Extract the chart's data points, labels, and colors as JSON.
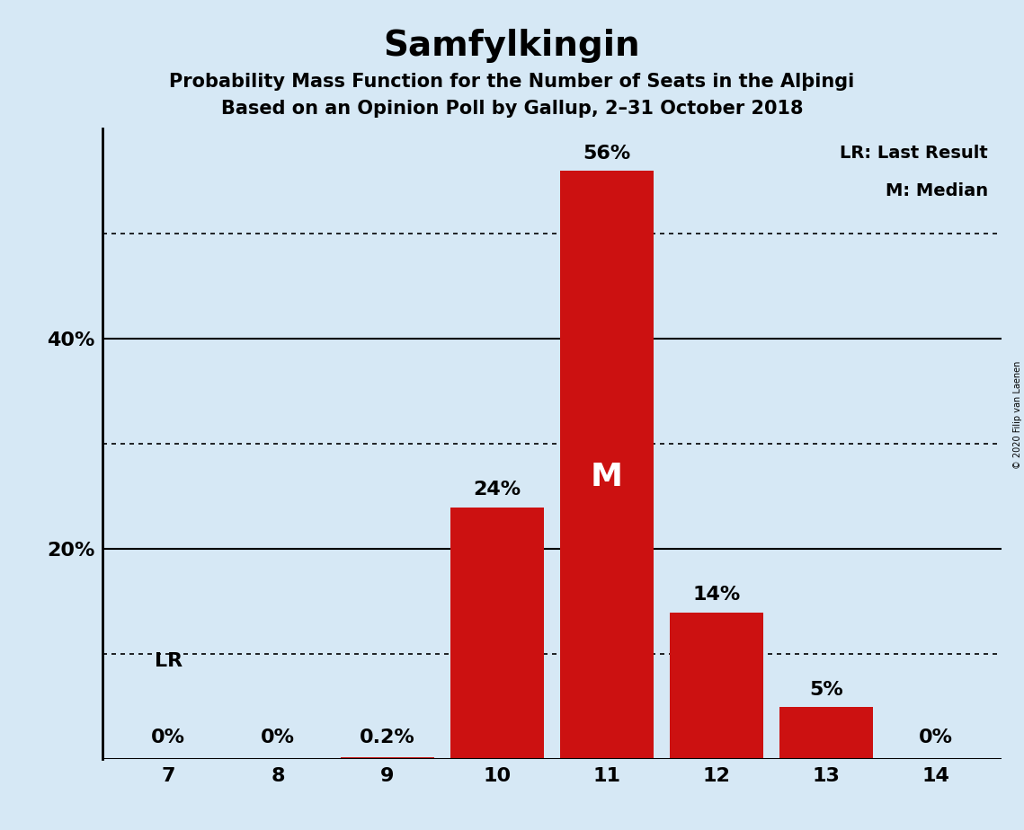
{
  "title": "Samfylkingin",
  "subtitle1": "Probability Mass Function for the Number of Seats in the Alþingi",
  "subtitle2": "Based on an Opinion Poll by Gallup, 2–31 October 2018",
  "copyright": "© 2020 Filip van Laenen",
  "categories": [
    7,
    8,
    9,
    10,
    11,
    12,
    13,
    14
  ],
  "values": [
    0.0,
    0.0,
    0.2,
    24.0,
    56.0,
    14.0,
    5.0,
    0.0
  ],
  "labels": [
    "0%",
    "0%",
    "0.2%",
    "24%",
    "56%",
    "14%",
    "5%",
    "0%"
  ],
  "bar_color": "#cc1111",
  "background_color": "#d6e8f5",
  "ylim": [
    0,
    60
  ],
  "solid_yticks": [
    20,
    40
  ],
  "dotted_yticks": [
    10,
    30,
    50
  ],
  "ytick_labeled": [
    20,
    40
  ],
  "ytick_label_map": {
    "20": "20%",
    "40": "40%"
  },
  "lr_seat": 7,
  "median_seat": 11,
  "legend_text1": "LR: Last Result",
  "legend_text2": "M: Median",
  "title_fontsize": 28,
  "subtitle_fontsize": 15,
  "label_fontsize": 15,
  "axis_fontsize": 16
}
